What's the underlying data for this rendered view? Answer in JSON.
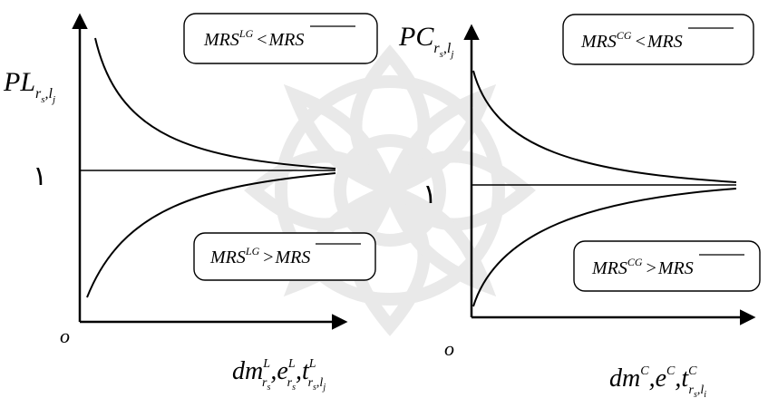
{
  "left_panel": {
    "y_label_main": "PL",
    "y_label_sub": "r",
    "y_label_subsub": "s",
    "y_label_sub2": ",l",
    "y_label_subsub2": "j",
    "origin": "o",
    "level_one": "١",
    "box_top": {
      "lhs": "MRS",
      "sup": "LG",
      "op": "<",
      "rhs": "MRS"
    },
    "box_bottom": {
      "lhs": "MRS",
      "sup": "LG",
      "op": ">",
      "rhs": "MRS"
    },
    "x_label": {
      "a": "dm",
      "a_sup": "L",
      "a_sub": "r",
      "a_subsub": "s",
      "sep1": ",",
      "b": "e",
      "b_sup": "L",
      "b_sub": "r",
      "b_subsub": "s",
      "sep2": ",",
      "c": "t",
      "c_sup": "L",
      "c_sub": "r",
      "c_subsub": "s",
      "c_sub2": ",l",
      "c_subsub2": "j"
    }
  },
  "right_panel": {
    "y_label_main": "PC",
    "y_label_sub": "r",
    "y_label_subsub": "s",
    "y_label_sub2": ",l",
    "y_label_subsub2": "j",
    "origin": "o",
    "level_one": "١",
    "box_top": {
      "lhs": "MRS",
      "sup": "CG",
      "op": "<",
      "rhs": "MRS"
    },
    "box_bottom": {
      "lhs": "MRS",
      "sup": "CG",
      "op": ">",
      "rhs": "MRS"
    },
    "x_label": {
      "a": "dm",
      "a_sup": "C",
      "sep1": ",",
      "b": "e",
      "b_sup": "C",
      "sep2": ",",
      "c": "t",
      "c_sup": "C",
      "c_sub": "r",
      "c_subsub": "s",
      "c_sub2": ",l",
      "c_subsub2": "i"
    }
  }
}
